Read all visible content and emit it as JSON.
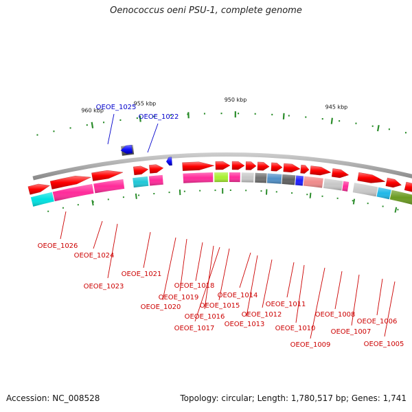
{
  "title": "Oenococcus oeni PSU-1, complete genome",
  "footer": {
    "accession": "Accession: NC_008528",
    "summary": "Topology: circular; Length: 1,780,517 bp; Genes: 1,741"
  },
  "colors": {
    "forward_cds": "#ff1a1a",
    "reverse_cds": "#1a1aff",
    "rna": "#777777",
    "forward_label": "#cc0000",
    "reverse_label": "#0000cc",
    "backbone": "#8c8c8c",
    "tick": "#2a8c2a"
  },
  "scale_labels": [
    "960 kbp",
    "955 kbp",
    "950 kbp",
    "945 kbp"
  ],
  "reverse_genes": [
    "OEOE_1025",
    "OEOE_1022"
  ],
  "forward_genes": [
    "OEOE_1026",
    "OEOE_1024",
    "OEOE_1023",
    "OEOE_1021",
    "OEOE_1020",
    "OEOE_1019",
    "OEOE_1018",
    "OEOE_1017",
    "OEOE_1016",
    "OEOE_1015",
    "OEOE_1014",
    "OEOE_1013",
    "OEOE_1012",
    "OEOE_1011",
    "OEOE_1010",
    "OEOE_1009",
    "OEOE_1008",
    "OEOE_1007",
    "OEOE_1006",
    "OEOE_1005"
  ],
  "cog_category_colors": [
    "#00e0e0",
    "#ff2a9a",
    "#ff2a9a",
    "#20c8d8",
    "#ff2a9a",
    "#ff2a9a",
    "#a8f030",
    "#ff2a9a",
    "#c8c8c8",
    "#707070",
    "#5090c8",
    "#606060",
    "#1a1aff",
    "#f08a8a",
    "#c8c8c8",
    "#ff2a9a",
    "#c8c8c8",
    "#20b8e8",
    "#6a9a20",
    "#f08a8a",
    "#ff9a00",
    "#707070"
  ]
}
